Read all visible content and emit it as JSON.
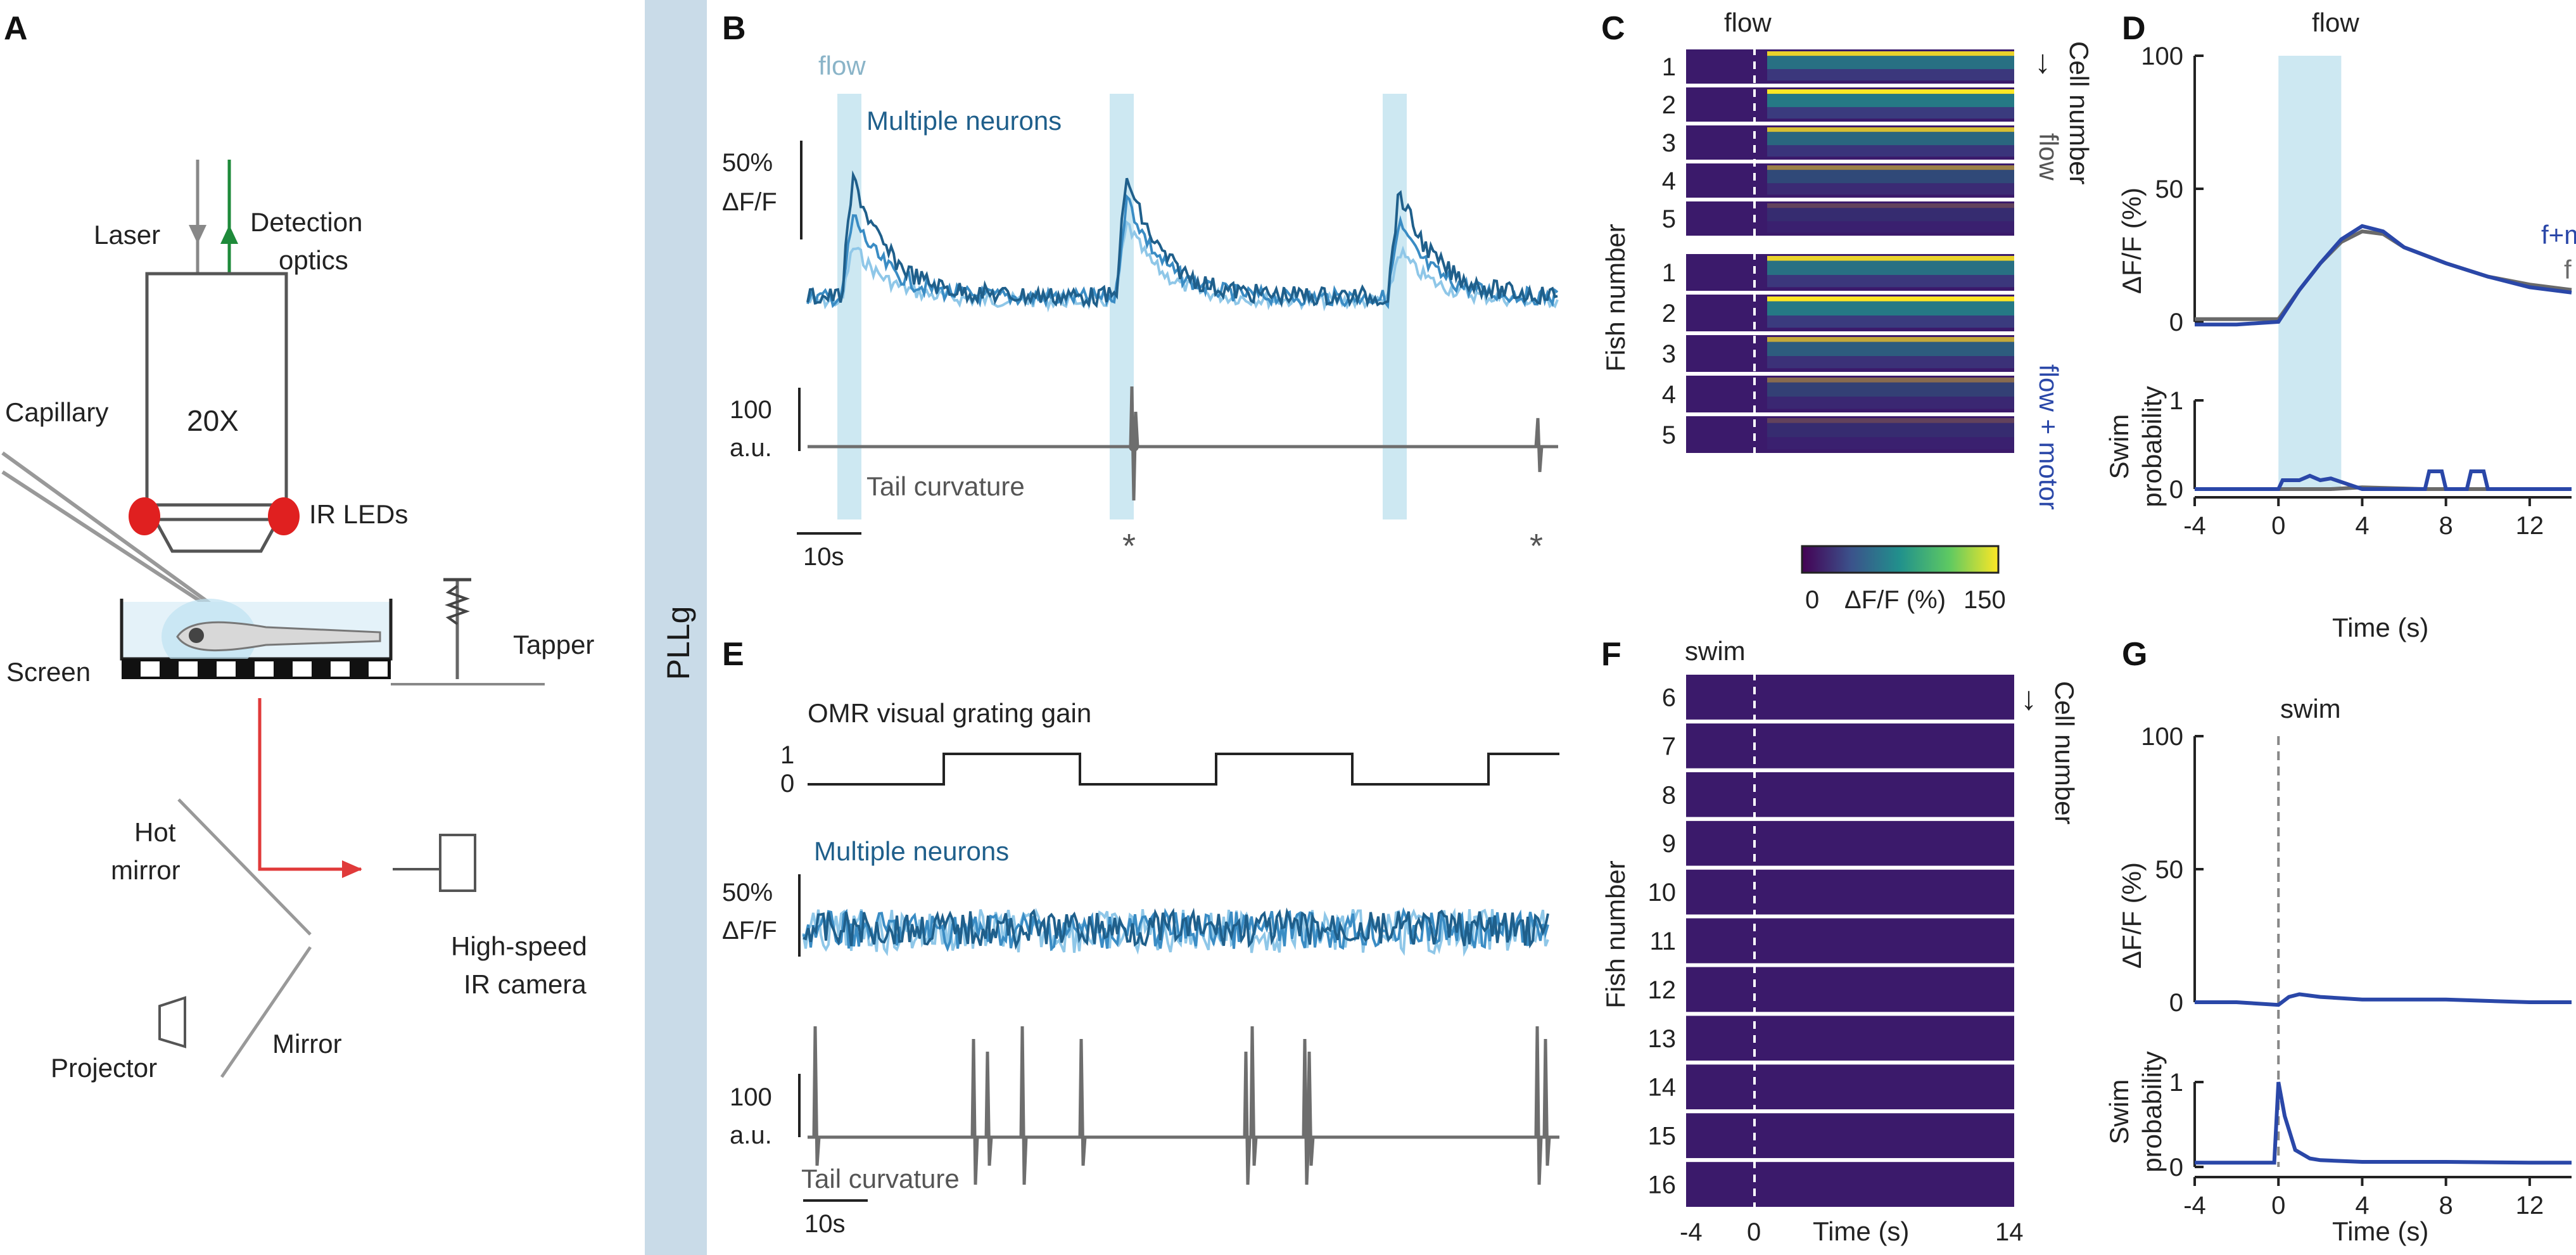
{
  "panel_letters": [
    "A",
    "B",
    "C",
    "D",
    "E",
    "F",
    "G"
  ],
  "side_label": "PLLg",
  "panelA": {
    "laser": "Laser",
    "detection": [
      "Detection",
      "optics"
    ],
    "objective": "20X",
    "capillary": "Capillary",
    "ir_leds": "IR LEDs",
    "screen": "Screen",
    "tapper": "Tapper",
    "hot_mirror": [
      "Hot",
      "mirror"
    ],
    "camera": [
      "High-speed",
      "IR camera"
    ],
    "projector": "Projector",
    "mirror": "Mirror"
  },
  "panelB": {
    "flow": "flow",
    "neurons": "Multiple neurons",
    "scale_dff": [
      "50%",
      "ΔF/F"
    ],
    "scale_tail": [
      "100",
      "a.u."
    ],
    "tail": "Tail curvature",
    "time_scale": "10s",
    "stars": [
      "*",
      "*"
    ]
  },
  "panelC": {
    "flow": "flow",
    "ylabel": "Fish number",
    "fish_top": [
      "1",
      "2",
      "3",
      "4",
      "5"
    ],
    "fish_bottom": [
      "1",
      "2",
      "3",
      "4",
      "5"
    ],
    "arrow": "↓",
    "cell_number": "Cell number",
    "flow_side": "flow",
    "flow_motor": "flow + motor",
    "cbar_min": "0",
    "cbar_label": "ΔF/F (%)",
    "cbar_max": "150"
  },
  "panelD": {
    "flow": "flow",
    "ylabel_top": "ΔF/F (%)",
    "yticks_top": [
      "100",
      "50",
      "0"
    ],
    "ylabel_bottom": [
      "Swim",
      "probability"
    ],
    "yticks_bottom": [
      "1",
      "0"
    ],
    "xticks": [
      "-4",
      "0",
      "4",
      "8",
      "12"
    ],
    "xlabel": "Time (s)",
    "legend_fm": "f+m",
    "legend_f": "f"
  },
  "panelE": {
    "omr": "OMR visual grating gain",
    "gain_ticks": [
      "1",
      "0"
    ],
    "neurons": "Multiple neurons",
    "scale_dff": [
      "50%",
      "ΔF/F"
    ],
    "scale_tail": [
      "100",
      "a.u."
    ],
    "tail": "Tail curvature",
    "time_scale": "10s"
  },
  "panelF": {
    "swim": "swim",
    "ylabel": "Fish number",
    "fish": [
      "6",
      "7",
      "8",
      "9",
      "10",
      "11",
      "12",
      "13",
      "14",
      "15",
      "16"
    ],
    "arrow": "↓",
    "cell_number": "Cell number",
    "xticks": [
      "-4",
      "0",
      "14"
    ],
    "xlabel": "Time (s)"
  },
  "panelG": {
    "swim": "swim",
    "ylabel_top": "ΔF/F (%)",
    "yticks_top": [
      "100",
      "50",
      "0"
    ],
    "ylabel_bottom": [
      "Swim",
      "probability"
    ],
    "yticks_bottom": [
      "1",
      "0"
    ],
    "xticks": [
      "-4",
      "0",
      "4",
      "8",
      "12"
    ],
    "xlabel": "Time (s)"
  },
  "colors": {
    "flow_band": "#cde8f2",
    "side_band": "#c9dbe8",
    "neuron_dark": "#1f5f8b",
    "neuron_mid": "#3a8cc4",
    "neuron_light": "#8fc7e8",
    "motor_blue": "#2a47a8",
    "flow_gray": "#6a6a6a",
    "tail_gray": "#6e6e6e",
    "laser_gray": "#888888",
    "detection_green": "#1e8a3a",
    "ir_red": "#e02020",
    "ir_path_red": "#e03a3a",
    "heatmap_bg": "#3b1a6b"
  },
  "chart_data": [
    {
      "type": "line",
      "panel": "D",
      "xlabel": "Time (s)",
      "ylabel": "ΔF/F (%)",
      "xlim": [
        -4,
        14
      ],
      "ylim": [
        0,
        100
      ],
      "x": [
        -4,
        -2,
        0,
        1,
        2,
        3,
        4,
        5,
        6,
        8,
        10,
        12,
        14
      ],
      "series": [
        {
          "name": "f+m",
          "values": [
            -1,
            -1,
            0,
            12,
            22,
            31,
            36,
            34,
            28,
            22,
            17,
            13,
            11
          ]
        },
        {
          "name": "f",
          "values": [
            1,
            1,
            1,
            12,
            22,
            30,
            34,
            33,
            28,
            22,
            17,
            14,
            12
          ]
        }
      ]
    },
    {
      "type": "line",
      "panel": "D",
      "xlabel": "Time (s)",
      "ylabel": "Swim probability",
      "xlim": [
        -4,
        14
      ],
      "ylim": [
        0,
        1
      ],
      "x": [
        -4,
        0,
        0.2,
        1,
        1.5,
        2,
        2.5,
        4,
        7,
        7.2,
        7.8,
        8,
        9,
        9.2,
        9.8,
        10,
        14
      ],
      "series": [
        {
          "name": "f+m",
          "values": [
            0,
            0,
            0.1,
            0.1,
            0.15,
            0.1,
            0.12,
            0,
            0,
            0.2,
            0.2,
            0,
            0,
            0.2,
            0.2,
            0,
            0
          ]
        },
        {
          "name": "f",
          "values": [
            0,
            0,
            0,
            0,
            0,
            0,
            0,
            0.02,
            0,
            0,
            0,
            0,
            0,
            0,
            0,
            0,
            0
          ]
        }
      ]
    },
    {
      "type": "line",
      "panel": "G",
      "xlabel": "Time (s)",
      "ylabel": "ΔF/F (%)",
      "xlim": [
        -4,
        14
      ],
      "ylim": [
        0,
        100
      ],
      "x": [
        -4,
        -2,
        0,
        0.5,
        1,
        2,
        4,
        8,
        12,
        14
      ],
      "values": [
        0,
        0,
        -1,
        2,
        3,
        2,
        1,
        1,
        0,
        0
      ]
    },
    {
      "type": "line",
      "panel": "G",
      "xlabel": "Time (s)",
      "ylabel": "Swim probability",
      "xlim": [
        -4,
        14
      ],
      "ylim": [
        0,
        1
      ],
      "x": [
        -4,
        -0.2,
        0,
        0.3,
        0.8,
        1.5,
        2,
        4,
        8,
        12,
        14
      ],
      "values": [
        0.05,
        0.05,
        1.0,
        0.6,
        0.2,
        0.1,
        0.08,
        0.06,
        0.06,
        0.05,
        0.05
      ]
    }
  ]
}
